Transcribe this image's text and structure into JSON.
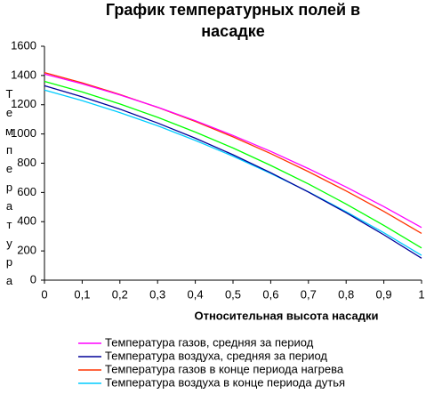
{
  "chart_data": {
    "type": "line",
    "title": "График температурных полей в насадке",
    "x_label": "Относительная высота насадки",
    "y_label": "Температура",
    "x": [
      0,
      0.1,
      0.2,
      0.3,
      0.4,
      0.5,
      0.6,
      0.7,
      0.8,
      0.9,
      1
    ],
    "series": [
      {
        "name": "Температура газов, средняя за период",
        "color": "#ff00ff",
        "values": [
          1410,
          1343,
          1267,
          1183,
          1091,
          990,
          881,
          763,
          637,
          503,
          360
        ]
      },
      {
        "name": "Температура воздуха, средняя за период",
        "color": "#000099",
        "values": [
          1330,
          1254,
          1170,
          1075,
          971,
          858,
          735,
          603,
          461,
          310,
          150
        ]
      },
      {
        "name": "Температура газов в конце периода нагрева",
        "color": "#ff3300",
        "values": [
          1420,
          1350,
          1270,
          1182,
          1086,
          980,
          866,
          742,
          610,
          470,
          320
        ]
      },
      {
        "name": "Температура воздуха в конце периода дутья",
        "color": "#00ccff",
        "values": [
          1300,
          1228,
          1146,
          1056,
          956,
          848,
          730,
          604,
          468,
          324,
          170
        ]
      },
      {
        "color": "#00ff00",
        "values": [
          1360,
          1287,
          1205,
          1114,
          1013,
          904,
          785,
          658,
          521,
          375,
          220
        ]
      }
    ],
    "xlim": [
      0,
      1
    ],
    "xticks": [
      0,
      {
        "value": 0.1,
        "label": "0,1"
      },
      {
        "value": 0.2,
        "label": "0,2"
      },
      {
        "value": 0.3,
        "label": "0,3"
      },
      {
        "value": 0.4,
        "label": "0,4"
      },
      {
        "value": 0.5,
        "label": "0,5"
      },
      {
        "value": 0.6,
        "label": "0,6"
      },
      {
        "value": 0.7,
        "label": "0,7"
      },
      {
        "value": 0.8,
        "label": "0,8"
      },
      {
        "value": 0.9,
        "label": "0,9"
      },
      1
    ],
    "ylim": [
      0,
      1600
    ],
    "yticks": [
      0,
      200,
      400,
      600,
      800,
      1000,
      1200,
      1400,
      1600
    ]
  }
}
